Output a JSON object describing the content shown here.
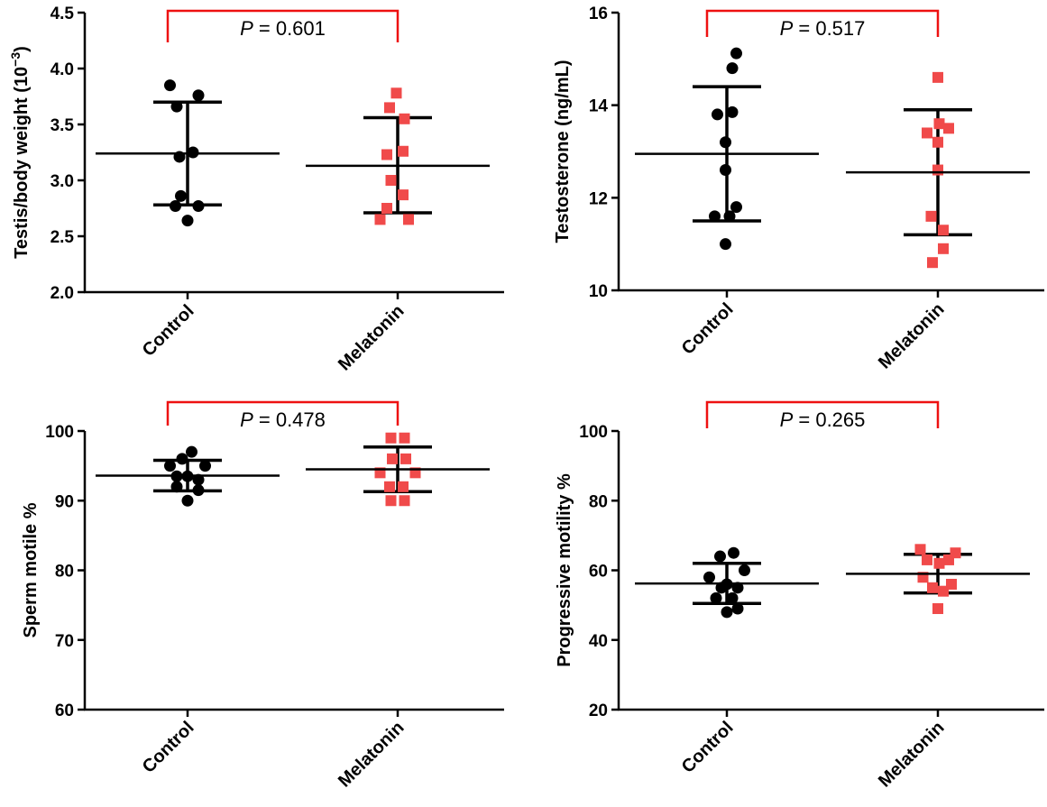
{
  "colors": {
    "control": "#000000",
    "melatonin": "#f04a4a",
    "bracket": "#ee1111",
    "axis": "#000000"
  },
  "chart_data": [
    {
      "type": "scatter",
      "ylabel_main": "Testis/body weight (10",
      "ylabel_exp": "−3",
      "ylabel_close": ")",
      "categories": [
        "Control",
        "Melatonin"
      ],
      "ylim": [
        2.0,
        4.5
      ],
      "yticks": [
        "2.0",
        "2.5",
        "3.0",
        "3.5",
        "4.0",
        "4.5"
      ],
      "pvalue_label": "P",
      "pvalue_text": " = 0.601",
      "series": [
        {
          "category": "Control",
          "marker": "circle",
          "points": [
            [
              -0.13,
              3.85
            ],
            [
              0.08,
              3.76
            ],
            [
              -0.08,
              3.66
            ],
            [
              -0.06,
              3.21
            ],
            [
              0.04,
              3.25
            ],
            [
              -0.05,
              2.86
            ],
            [
              -0.09,
              2.77
            ],
            [
              0.08,
              2.77
            ],
            [
              0.0,
              2.64
            ]
          ],
          "mean": 3.24,
          "sd_low": 2.78,
          "sd_high": 3.7
        },
        {
          "category": "Melatonin",
          "marker": "square",
          "points": [
            [
              -0.01,
              3.78
            ],
            [
              -0.06,
              3.65
            ],
            [
              0.05,
              3.55
            ],
            [
              -0.08,
              3.23
            ],
            [
              0.04,
              3.26
            ],
            [
              -0.05,
              3.0
            ],
            [
              0.04,
              2.87
            ],
            [
              -0.08,
              2.75
            ],
            [
              -0.13,
              2.65
            ],
            [
              0.08,
              2.65
            ]
          ],
          "mean": 3.13,
          "sd_low": 2.71,
          "sd_high": 3.56
        }
      ]
    },
    {
      "type": "scatter",
      "ylabel_main": "Testosterone (ng/mL)",
      "ylabel_exp": "",
      "ylabel_close": "",
      "categories": [
        "Control",
        "Melatonin"
      ],
      "ylim": [
        10,
        16
      ],
      "yticks": [
        "10",
        "12",
        "14",
        "16"
      ],
      "pvalue_label": "P",
      "pvalue_text": " = 0.517",
      "series": [
        {
          "category": "Control",
          "marker": "circle",
          "points": [
            [
              0.07,
              15.12
            ],
            [
              0.04,
              14.8
            ],
            [
              -0.07,
              13.8
            ],
            [
              0.04,
              13.85
            ],
            [
              -0.01,
              13.2
            ],
            [
              -0.01,
              12.6
            ],
            [
              -0.09,
              11.6
            ],
            [
              0.02,
              11.6
            ],
            [
              0.07,
              11.8
            ],
            [
              -0.01,
              11.0
            ]
          ],
          "mean": 12.95,
          "sd_low": 11.5,
          "sd_high": 14.4
        },
        {
          "category": "Melatonin",
          "marker": "square",
          "points": [
            [
              0.0,
              14.6
            ],
            [
              0.01,
              13.6
            ],
            [
              -0.08,
              13.4
            ],
            [
              0.08,
              13.5
            ],
            [
              0.0,
              13.2
            ],
            [
              0.0,
              12.6
            ],
            [
              -0.05,
              11.6
            ],
            [
              0.04,
              11.3
            ],
            [
              0.04,
              10.9
            ],
            [
              -0.04,
              10.6
            ]
          ],
          "mean": 12.55,
          "sd_low": 11.2,
          "sd_high": 13.9
        }
      ]
    },
    {
      "type": "scatter",
      "ylabel_main": "Sperm motile %",
      "ylabel_exp": "",
      "ylabel_close": "",
      "categories": [
        "Control",
        "Melatonin"
      ],
      "ylim": [
        60,
        100
      ],
      "yticks": [
        "60",
        "70",
        "80",
        "90",
        "100"
      ],
      "pvalue_label": "P",
      "pvalue_text": " = 0.478",
      "series": [
        {
          "category": "Control",
          "marker": "circle",
          "points": [
            [
              0.03,
              97.0
            ],
            [
              -0.04,
              96.0
            ],
            [
              -0.13,
              95.0
            ],
            [
              0.13,
              95.0
            ],
            [
              -0.08,
              93.5
            ],
            [
              0.0,
              93.5
            ],
            [
              0.08,
              93.0
            ],
            [
              -0.08,
              92.0
            ],
            [
              0.08,
              91.5
            ],
            [
              0.0,
              90.0
            ]
          ],
          "mean": 93.6,
          "sd_low": 91.4,
          "sd_high": 95.8
        },
        {
          "category": "Melatonin",
          "marker": "square",
          "points": [
            [
              -0.05,
              99.0
            ],
            [
              0.05,
              99.0
            ],
            [
              -0.04,
              96.0
            ],
            [
              0.06,
              96.0
            ],
            [
              -0.13,
              94.0
            ],
            [
              0.13,
              94.0
            ],
            [
              -0.06,
              92.0
            ],
            [
              0.04,
              92.0
            ],
            [
              -0.05,
              90.0
            ],
            [
              0.05,
              90.0
            ]
          ],
          "mean": 94.5,
          "sd_low": 91.3,
          "sd_high": 97.7
        }
      ]
    },
    {
      "type": "scatter",
      "ylabel_main": "Progressive motility %",
      "ylabel_exp": "",
      "ylabel_close": "",
      "categories": [
        "Control",
        "Melatonin"
      ],
      "ylim": [
        20,
        100
      ],
      "yticks": [
        "20",
        "40",
        "60",
        "80",
        "100"
      ],
      "pvalue_label": "P",
      "pvalue_text": " = 0.265",
      "series": [
        {
          "category": "Control",
          "marker": "circle",
          "points": [
            [
              -0.05,
              64.0
            ],
            [
              0.05,
              65.0
            ],
            [
              -0.13,
              58.0
            ],
            [
              -0.04,
              55.0
            ],
            [
              0.08,
              55.0
            ],
            [
              0.0,
              56.0
            ],
            [
              0.13,
              60.0
            ],
            [
              -0.08,
              52.0
            ],
            [
              0.04,
              52.0
            ],
            [
              0.08,
              49.0
            ],
            [
              0.0,
              48.0
            ]
          ],
          "mean": 56.2,
          "sd_low": 50.5,
          "sd_high": 62.0
        },
        {
          "category": "Melatonin",
          "marker": "square",
          "points": [
            [
              -0.13,
              66.0
            ],
            [
              -0.08,
              63.0
            ],
            [
              0.01,
              62.0
            ],
            [
              0.08,
              63.0
            ],
            [
              0.13,
              65.0
            ],
            [
              -0.11,
              58.0
            ],
            [
              -0.04,
              55.0
            ],
            [
              0.04,
              54.0
            ],
            [
              0.1,
              56.0
            ],
            [
              0.0,
              49.0
            ]
          ],
          "mean": 59.0,
          "sd_low": 53.5,
          "sd_high": 64.6
        }
      ]
    }
  ]
}
